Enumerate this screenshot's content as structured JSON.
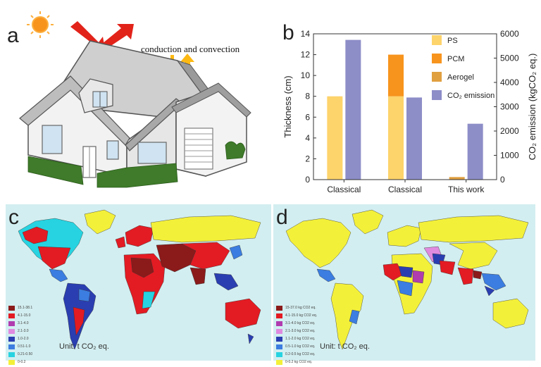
{
  "panel_a": {
    "letter": "a",
    "annotation": "conduction and convection"
  },
  "panel_b": {
    "letter": "b",
    "legend": [
      {
        "label": "PS",
        "color": "#fdd36b"
      },
      {
        "label": "PCM",
        "color": "#f7941d"
      },
      {
        "label": "Aerogel",
        "color": "#e0a040"
      },
      {
        "label": "CO₂ emission",
        "color": "#8d8dc8"
      }
    ]
  },
  "panel_c": {
    "letter": "c",
    "unit": "Unit: t CO₂ eq.",
    "legend": [
      {
        "label": "15.1-38.1",
        "color": "#8b1a1a"
      },
      {
        "label": "4.1-15.0",
        "color": "#e31b23"
      },
      {
        "label": "3.1-4.0",
        "color": "#b03cb0"
      },
      {
        "label": "2.1-3.0",
        "color": "#e08ae0"
      },
      {
        "label": "1.0-2.0",
        "color": "#2a3eb1"
      },
      {
        "label": "0.51-1.0",
        "color": "#3b7de0"
      },
      {
        "label": "0.21-0.50",
        "color": "#27d3e0"
      },
      {
        "label": "0-0.2",
        "color": "#f3f03a"
      }
    ]
  },
  "panel_d": {
    "letter": "d",
    "unit": "Unit:  t CO₂ eq.",
    "legend": [
      {
        "label": "15-37.0 kg CO2 eq.",
        "color": "#8b1a1a"
      },
      {
        "label": "4.1-15.0 kg CO2 eq.",
        "color": "#e31b23"
      },
      {
        "label": "3.1-4.0 kg CO2 eq.",
        "color": "#b03cb0"
      },
      {
        "label": "2.1-3.0 kg CO2 eq.",
        "color": "#e08ae0"
      },
      {
        "label": "1.1-2.0 kg CO2 eq.",
        "color": "#2a3eb1"
      },
      {
        "label": "0.5-1.0 kg CO2 eq.",
        "color": "#3b7de0"
      },
      {
        "label": "0.2-0.5 kg CO2 eq.",
        "color": "#27d3e0"
      },
      {
        "label": "0-0.2 kg CO2 eq.",
        "color": "#f3f03a"
      }
    ]
  },
  "chart_data": {
    "type": "bar",
    "title": "",
    "categories": [
      "Classical",
      "Classical",
      "This work"
    ],
    "xlabel": "",
    "ylabel": "Thickness (cm)",
    "ylim": [
      0,
      14
    ],
    "yticks": [
      0,
      2,
      4,
      6,
      8,
      10,
      12,
      14
    ],
    "y2label": "CO₂ emission (kgCO₂ eq.)",
    "y2lim": [
      0,
      6000
    ],
    "y2ticks": [
      0,
      1000,
      2000,
      3000,
      4000,
      5000,
      6000
    ],
    "series": [
      {
        "name": "PS",
        "axis": "left",
        "values": [
          8,
          8,
          0
        ]
      },
      {
        "name": "PCM",
        "axis": "left",
        "stacked_on": "PS",
        "values": [
          0,
          4,
          0
        ]
      },
      {
        "name": "Aerogel",
        "axis": "left",
        "values": [
          0,
          0,
          0.25
        ]
      },
      {
        "name": "CO₂ emission",
        "axis": "right",
        "values": [
          5750,
          3380,
          2300
        ]
      }
    ]
  }
}
